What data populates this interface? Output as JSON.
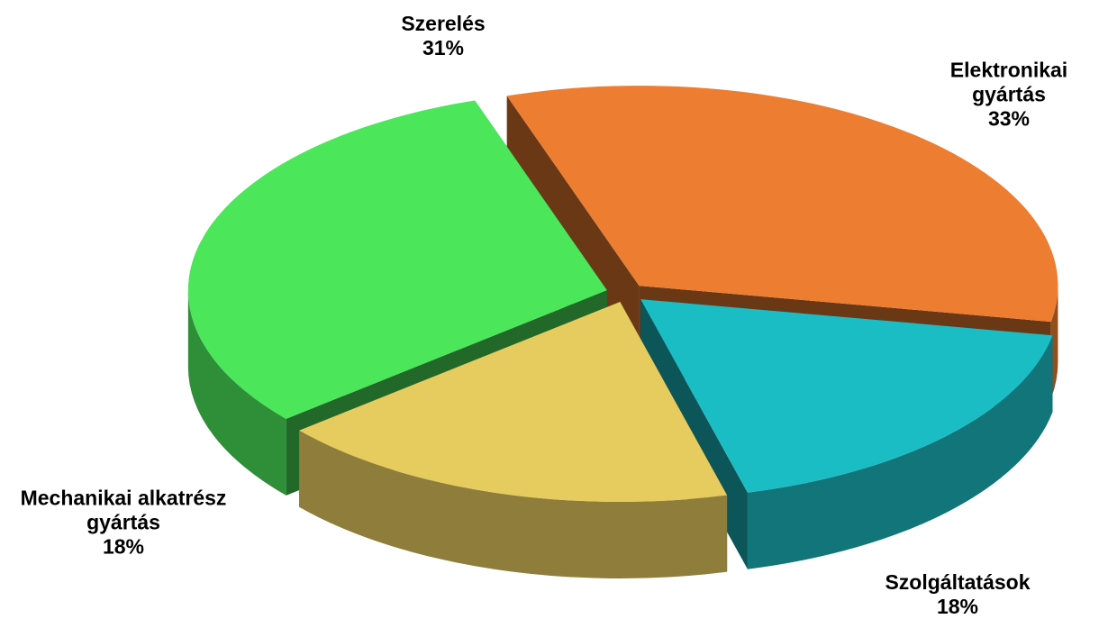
{
  "chart_data": {
    "type": "pie",
    "categories": [
      "Szerelés",
      "Elektronikai gyártás",
      "Szolgáltatások",
      "Mechanikai alkatrész gyártás"
    ],
    "values": [
      31,
      33,
      18,
      18
    ],
    "value_labels": [
      "31%",
      "33%",
      "18%",
      "18%"
    ],
    "colors": [
      "#4ce65a",
      "#ed7d31",
      "#1bbdc5",
      "#e6cb5f"
    ]
  }
}
